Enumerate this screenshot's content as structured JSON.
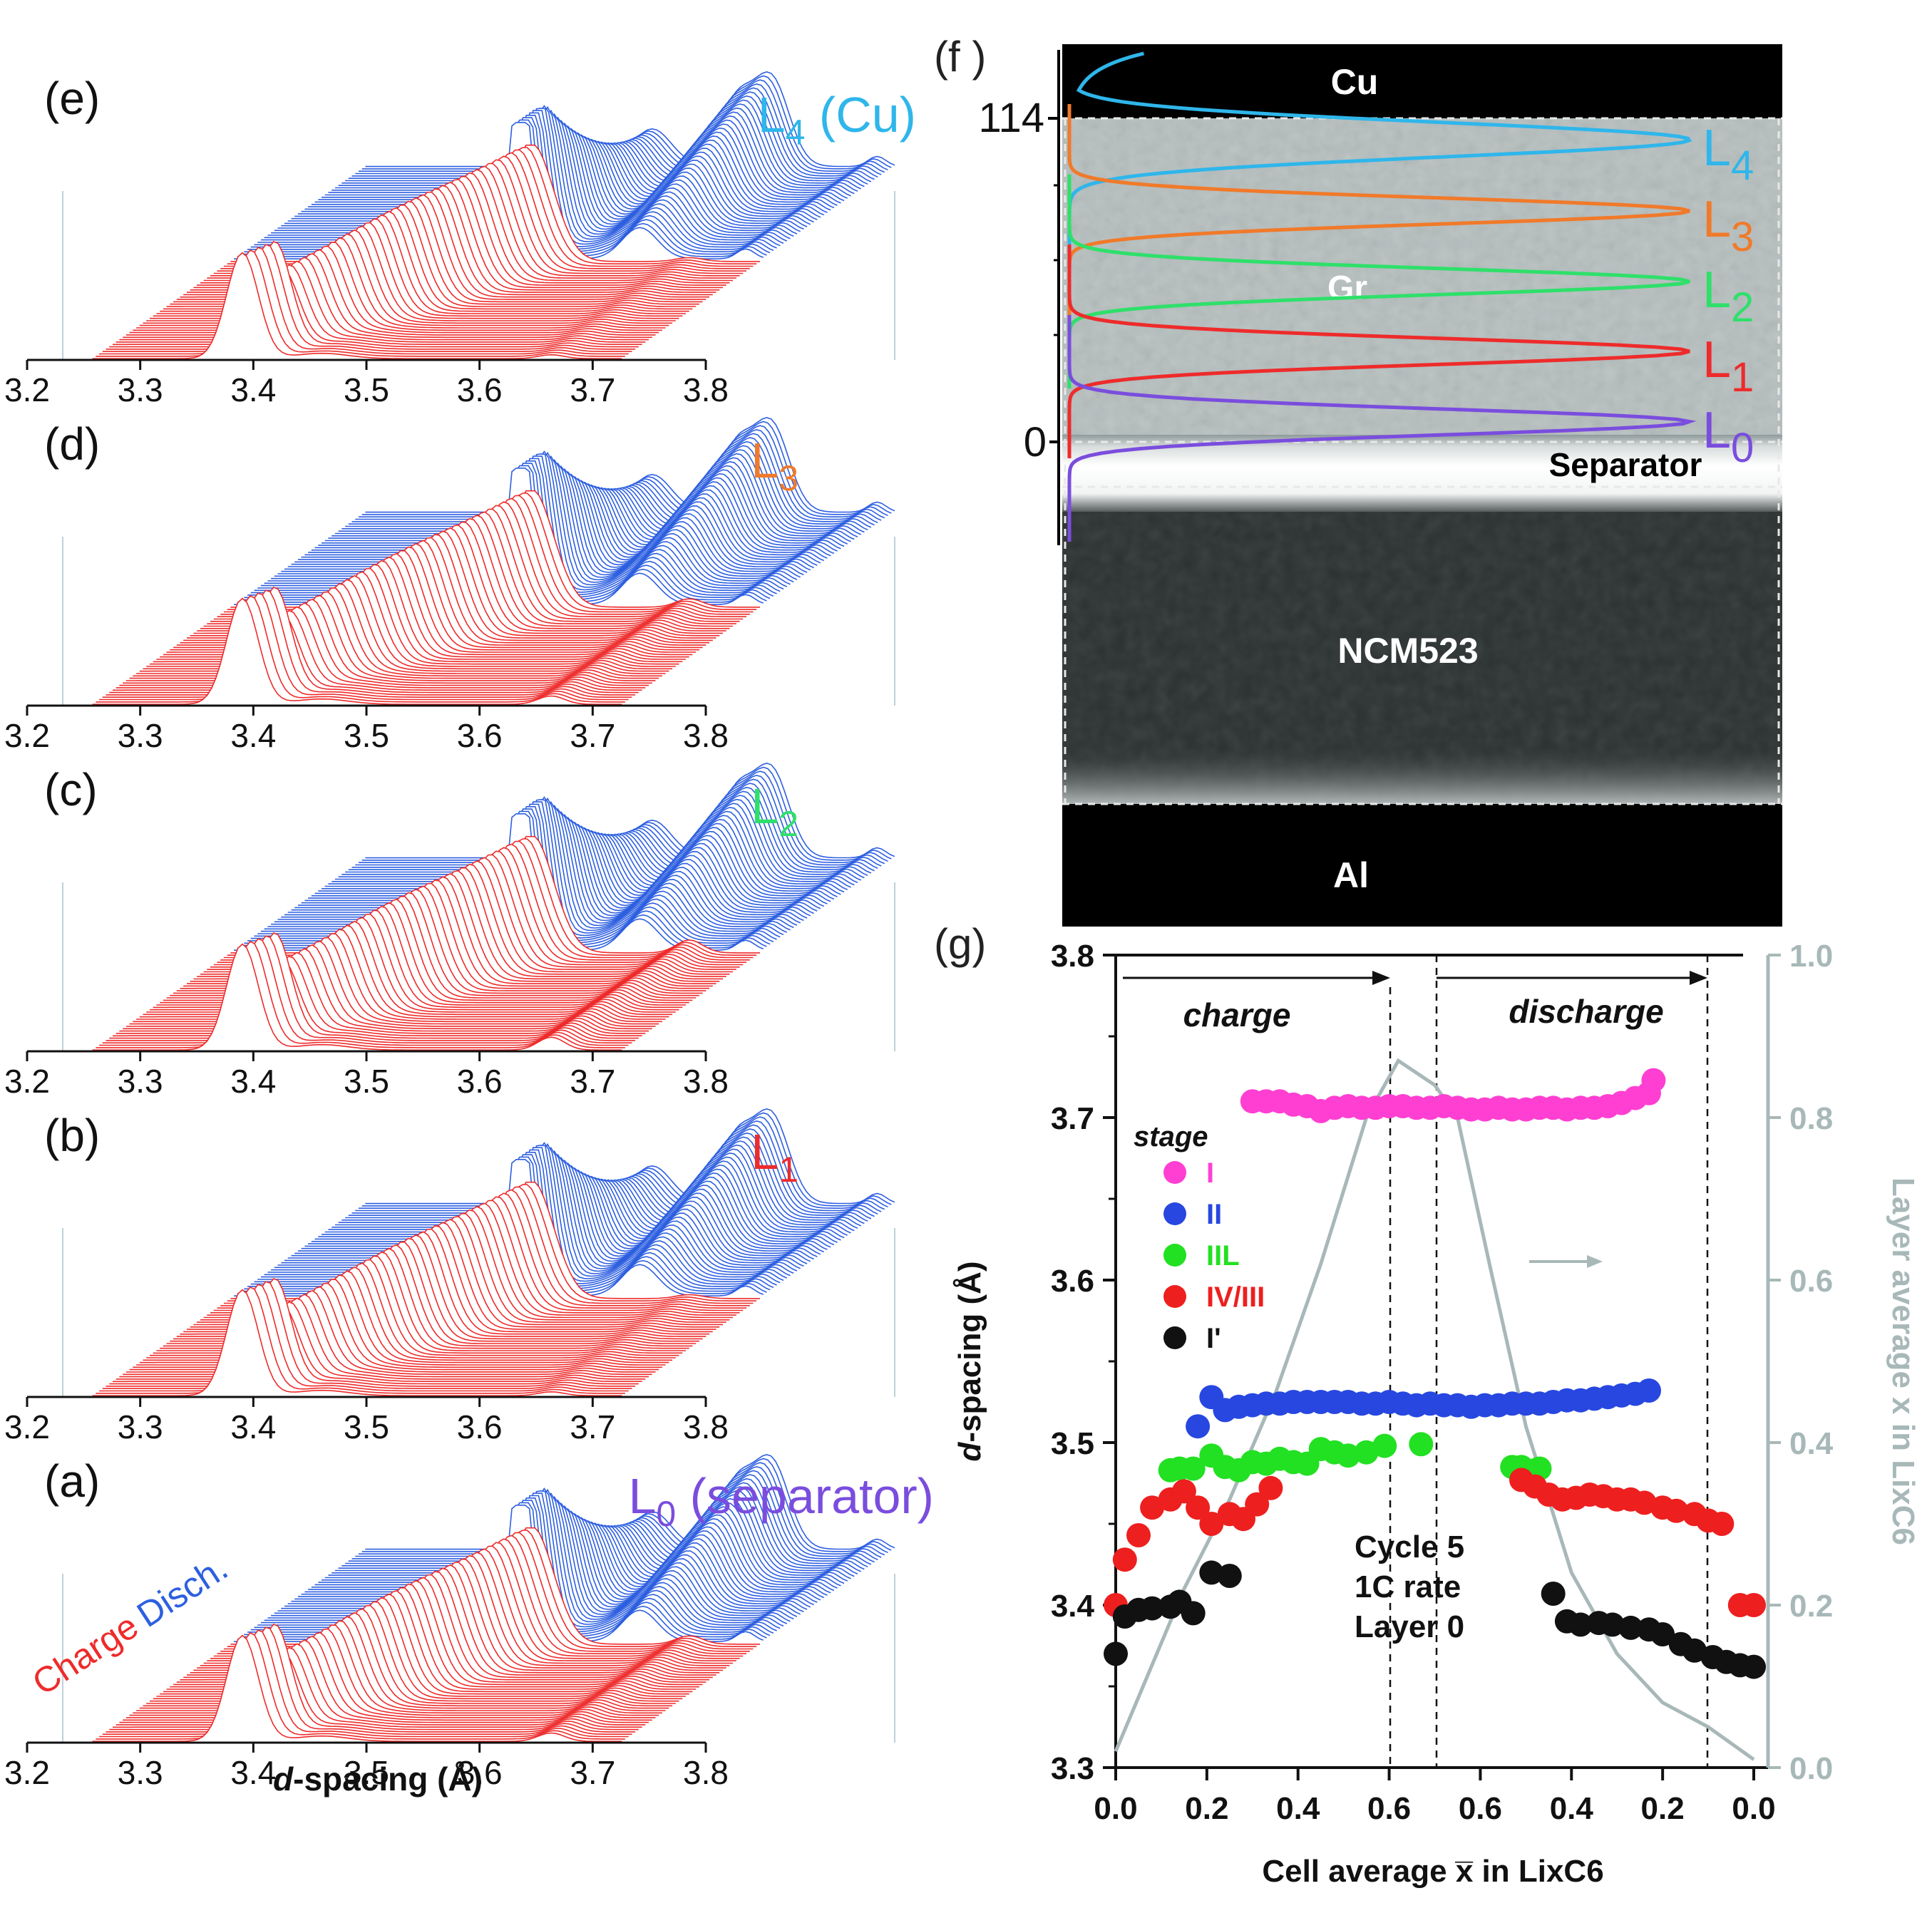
{
  "colors": {
    "charge": "#ee2b2b",
    "discharge": "#2d5fe0",
    "L0": "#7a4dde",
    "L1": "#ee2b2b",
    "L2": "#2ee06a",
    "L3": "#f07a2a",
    "L4": "#2fb6ea",
    "stage_I": "#ff3fd2",
    "stage_II": "#2747e0",
    "stage_IIL": "#22e022",
    "stage_IV_III": "#ee1f1f",
    "stage_Iprime": "#111111",
    "layer_avg": "#a8b8b8"
  },
  "stack_panels": {
    "panels": [
      {
        "letter": "(e)",
        "label_main": "L",
        "label_sub": "4",
        "label_suffix": " (Cu)",
        "color_key": "L4"
      },
      {
        "letter": "(d)",
        "label_main": "L",
        "label_sub": "3",
        "label_suffix": "",
        "color_key": "L3"
      },
      {
        "letter": "(c)",
        "label_main": "L",
        "label_sub": "2",
        "label_suffix": "",
        "color_key": "L2"
      },
      {
        "letter": "(b)",
        "label_main": "L",
        "label_sub": "1",
        "label_suffix": "",
        "color_key": "L1"
      },
      {
        "letter": "(a)",
        "label_main": "L",
        "label_sub": "0",
        "label_suffix": " (separator)",
        "color_key": "L0"
      }
    ],
    "ticks": [
      "3.2",
      "3.3",
      "3.4",
      "3.5",
      "3.6",
      "3.7",
      "3.8"
    ],
    "xlabel_italic": "d",
    "xlabel_rest": "-spacing (Å)",
    "legend_charge": "Charge",
    "legend_discharge": "Disch."
  },
  "panel_f": {
    "letter": "(f )",
    "tick_top": "114",
    "tick_bottom": "0",
    "regions": [
      "Cu",
      "Gr",
      "Separator",
      "NCM523",
      "Al"
    ],
    "layers": [
      {
        "main": "L",
        "sub": "4",
        "color_key": "L4"
      },
      {
        "main": "L",
        "sub": "3",
        "color_key": "L3"
      },
      {
        "main": "L",
        "sub": "2",
        "color_key": "L2"
      },
      {
        "main": "L",
        "sub": "1",
        "color_key": "L1"
      },
      {
        "main": "L",
        "sub": "0",
        "color_key": "L0"
      }
    ]
  },
  "panel_g": {
    "letter": "(g)",
    "annotation_charge": "charge",
    "annotation_discharge": "discharge",
    "legend_title": "stage",
    "legend": [
      {
        "label": "I",
        "color_key": "stage_I"
      },
      {
        "label": "II",
        "color_key": "stage_II"
      },
      {
        "label": "IIL",
        "color_key": "stage_IIL"
      },
      {
        "label": "IV/III",
        "color_key": "stage_IV_III"
      },
      {
        "label": "I'",
        "color_key": "stage_Iprime"
      }
    ],
    "note_lines": [
      "Cycle 5",
      "1C rate",
      "Layer 0"
    ],
    "yticks_left": [
      "3.3",
      "3.4",
      "3.5",
      "3.6",
      "3.7",
      "3.8"
    ],
    "yticks_right": [
      "0.0",
      "0.2",
      "0.4",
      "0.6",
      "0.8",
      "1.0"
    ],
    "xticks": [
      "0.0",
      "0.2",
      "0.4",
      "0.6",
      "0.6",
      "0.4",
      "0.2",
      "0.0"
    ],
    "ylabel_italic": "d",
    "ylabel_rest": "-spacing (Å)",
    "xlabel": "Cell average x̅ in LixC6",
    "y2label": "Layer average x in LixC6"
  },
  "chart_data": [
    {
      "type": "line",
      "panels": [
        "(a)",
        "(b)",
        "(c)",
        "(d)",
        "(e)"
      ],
      "xlabel": "d-spacing (Å)",
      "xlim": [
        3.2,
        3.8
      ],
      "series": [
        {
          "name": "Charge"
        },
        {
          "name": "Disch."
        }
      ],
      "peak_positions_approx": {
        "stage_I": 3.71,
        "stage_II": 3.525,
        "stage_IIL": 3.49,
        "stage_IV_III": 3.46,
        "stage_Iprime": 3.37
      }
    },
    {
      "type": "scatter",
      "panel": "(g)",
      "xlabel": "Cell average x̅ in LixC6",
      "ylabel": "d-spacing (Å)",
      "ylim": [
        3.3,
        3.8
      ],
      "y2label": "Layer average x in LixC6",
      "y2lim": [
        0.0,
        1.0
      ],
      "x_axis_note": "cell average x rises 0.0→0.7 during charge then falls 0.7→0.0 during discharge; positions below are cumulative progress p (0–1.4) along that path",
      "series": [
        {
          "name": "I",
          "p": [
            0.3,
            0.33,
            0.36,
            0.39,
            0.42,
            0.45,
            0.48,
            0.51,
            0.54,
            0.57,
            0.6,
            0.63,
            0.66,
            0.69,
            0.72,
            0.75,
            0.78,
            0.81,
            0.84,
            0.87,
            0.9,
            0.93,
            0.96,
            0.99,
            1.02,
            1.05,
            1.08,
            1.11,
            1.14,
            1.17
          ],
          "y": [
            3.71,
            3.71,
            3.71,
            3.708,
            3.707,
            3.704,
            3.706,
            3.707,
            3.706,
            3.706,
            3.707,
            3.707,
            3.706,
            3.706,
            3.707,
            3.706,
            3.705,
            3.705,
            3.706,
            3.705,
            3.705,
            3.706,
            3.706,
            3.705,
            3.706,
            3.706,
            3.707,
            3.709,
            3.712,
            3.715
          ]
        },
        {
          "name": "I_end",
          "p": [
            1.18
          ],
          "y": [
            3.723
          ]
        },
        {
          "name": "II",
          "p": [
            0.18,
            0.21,
            0.24,
            0.27,
            0.3,
            0.33,
            0.36,
            0.39,
            0.42,
            0.45,
            0.48,
            0.51,
            0.54,
            0.57,
            0.6,
            0.63,
            0.66,
            0.69,
            0.72,
            0.75,
            0.78,
            0.81,
            0.84,
            0.87,
            0.9,
            0.93,
            0.96,
            0.99,
            1.02,
            1.05,
            1.08,
            1.11,
            1.14,
            1.17
          ],
          "y": [
            3.51,
            3.528,
            3.52,
            3.522,
            3.523,
            3.524,
            3.524,
            3.525,
            3.525,
            3.525,
            3.525,
            3.525,
            3.524,
            3.524,
            3.525,
            3.524,
            3.523,
            3.524,
            3.523,
            3.523,
            3.522,
            3.523,
            3.523,
            3.524,
            3.524,
            3.524,
            3.525,
            3.526,
            3.526,
            3.527,
            3.528,
            3.529,
            3.53,
            3.532
          ]
        },
        {
          "name": "IIL",
          "p": [
            0.12,
            0.14,
            0.17,
            0.21,
            0.24,
            0.27,
            0.3,
            0.33,
            0.36,
            0.39,
            0.42,
            0.45,
            0.48,
            0.51,
            0.55,
            0.59,
            0.67,
            0.87,
            0.89,
            0.92,
            0.93
          ],
          "y": [
            3.483,
            3.484,
            3.484,
            3.492,
            3.485,
            3.483,
            3.488,
            3.487,
            3.49,
            3.488,
            3.487,
            3.496,
            3.494,
            3.492,
            3.494,
            3.498,
            3.499,
            3.485,
            3.485,
            3.483,
            3.484
          ]
        },
        {
          "name": "IV/III",
          "p": [
            0.0,
            0.02,
            0.05,
            0.08,
            0.12,
            0.15,
            0.18,
            0.21,
            0.25,
            0.28,
            0.31,
            0.34,
            0.89,
            0.92,
            0.95,
            0.98,
            1.01,
            1.04,
            1.07,
            1.1,
            1.13,
            1.16,
            1.2,
            1.23,
            1.27,
            1.3,
            1.33,
            1.37,
            1.4
          ],
          "y": [
            3.4,
            3.428,
            3.443,
            3.46,
            3.465,
            3.47,
            3.46,
            3.45,
            3.456,
            3.453,
            3.462,
            3.472,
            3.477,
            3.473,
            3.468,
            3.465,
            3.466,
            3.468,
            3.467,
            3.465,
            3.465,
            3.463,
            3.46,
            3.458,
            3.456,
            3.452,
            3.45,
            3.4,
            3.4
          ]
        },
        {
          "name": "I'",
          "p": [
            0.0,
            0.02,
            0.05,
            0.08,
            0.12,
            0.14,
            0.17,
            0.21,
            0.25,
            0.96,
            0.99,
            1.02,
            1.06,
            1.09,
            1.13,
            1.17,
            1.2,
            1.24,
            1.27,
            1.31,
            1.34,
            1.37,
            1.4
          ],
          "y": [
            3.37,
            3.393,
            3.397,
            3.398,
            3.399,
            3.402,
            3.395,
            3.42,
            3.418,
            3.407,
            3.39,
            3.388,
            3.389,
            3.388,
            3.386,
            3.385,
            3.382,
            3.376,
            3.372,
            3.368,
            3.365,
            3.363,
            3.362
          ]
        }
      ],
      "layer_average": {
        "p": [
          0.0,
          0.06,
          0.15,
          0.25,
          0.35,
          0.45,
          0.55,
          0.62,
          0.7,
          0.75,
          0.82,
          0.9,
          1.0,
          1.1,
          1.2,
          1.3,
          1.4
        ],
        "x": [
          0.02,
          0.1,
          0.22,
          0.33,
          0.46,
          0.62,
          0.8,
          0.87,
          0.84,
          0.8,
          0.62,
          0.42,
          0.24,
          0.14,
          0.08,
          0.05,
          0.01
        ]
      }
    }
  ]
}
